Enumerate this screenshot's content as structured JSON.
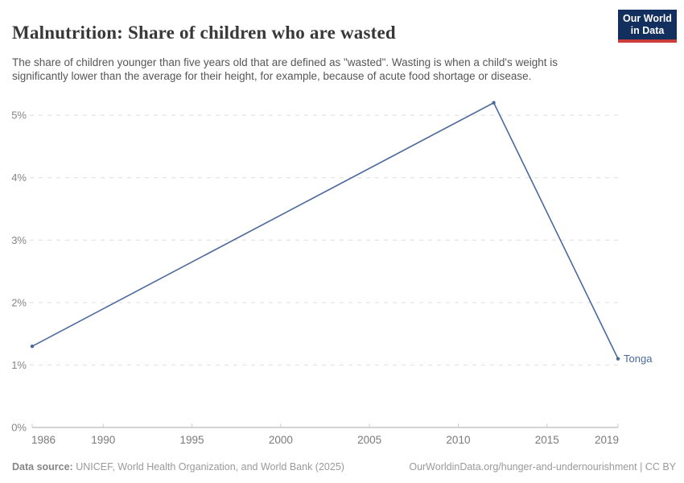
{
  "header": {
    "title": "Malnutrition: Share of children who are wasted",
    "subtitle": "The share of children younger than five years old that are defined as \"wasted\". Wasting is when a child's weight is significantly lower than the average for their height, for example, because of acute food shortage or disease.",
    "logo": {
      "line1": "Our World",
      "line2": "in Data",
      "bg_color": "#122F5D",
      "accent_color": "#CC3C3A"
    }
  },
  "chart_data": {
    "type": "line",
    "title": "Malnutrition: Share of children who are wasted",
    "series": [
      {
        "name": "Tonga",
        "color": "#4C6A9C",
        "points": [
          [
            1986,
            1.3
          ],
          [
            2012,
            5.2
          ],
          [
            2019,
            1.1
          ]
        ]
      }
    ],
    "x_ticks": [
      1986,
      1990,
      1995,
      2000,
      2005,
      2010,
      2015,
      2019
    ],
    "y_ticks": [
      0,
      1,
      2,
      3,
      4,
      5
    ],
    "y_suffix": "%",
    "xlim": [
      1986,
      2019
    ],
    "ylim": [
      0,
      5.35
    ],
    "grid": "horizontal-dashed",
    "legend_position": "end-of-line-label",
    "grid_color": "#dedede",
    "axis_color": "#a8a8a8",
    "tick_color": "#c9c9c9",
    "y_label_color": "#858585",
    "x_label_color": "#7a7a7a"
  },
  "footer": {
    "source_label": "Data source:",
    "source_text": "UNICEF, World Health Organization, and World Bank (2025)",
    "right_text": "OurWorldinData.org/hunger-and-undernourishment | CC BY"
  }
}
